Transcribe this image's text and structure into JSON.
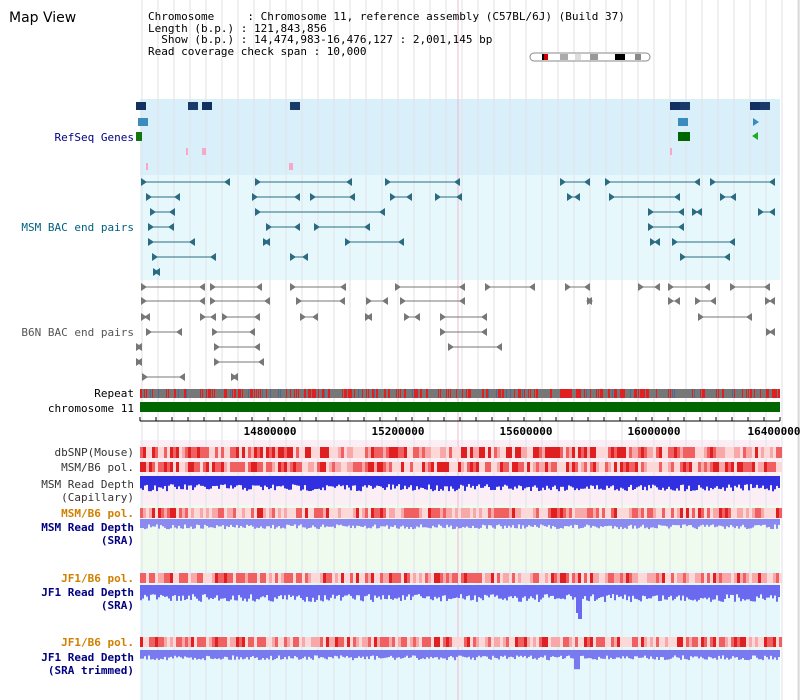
{
  "view_title": "Map View",
  "info": {
    "chromosome": "Chromosome     : Chromosome 11, reference assembly (C57BL/6J) (Build 37)",
    "length": "Length (b.p.) : 121,843,856",
    "show": "  Show (b.p.) : 14,474,983-16,476,127 : 2,001,145 bp",
    "coverage": "Read coverage check span : 10,000"
  },
  "tracks": {
    "refseq": "RefSeq Genes",
    "msm_bac": "MSM BAC end pairs",
    "b6n_bac": "B6N BAC end pairs",
    "repeat": "Repeat",
    "chromosome": "chromosome 11",
    "dbsnp": "dbSNP(Mouse)",
    "msm_b6_pol": "MSM/B6 pol.",
    "msm_depth_cap_1": "MSM Read Depth",
    "msm_depth_cap_2": "(Capillary)",
    "msm_b6_pol2": "MSM/B6 pol.",
    "msm_depth_sra_1": "MSM Read Depth",
    "msm_depth_sra_2": "(SRA)",
    "jf1_pol": "JF1/B6 pol.",
    "jf1_depth_sra_1": "JF1 Read Depth",
    "jf1_depth_sra_2": "(SRA)",
    "jf1_pol2": "JF1/B6 pol.",
    "jf1_depth_trim_1": "JF1 Read Depth",
    "jf1_depth_trim_2": "(SRA trimmed)"
  },
  "axis_ticks": [
    "14800000",
    "15200000",
    "15600000",
    "16000000",
    "16400000"
  ],
  "colors": {
    "refseq_label": "#000080",
    "msm_label": "#006080",
    "b6n_label": "#555555",
    "pol_label": "#d08000",
    "depth_label": "#000080",
    "chromosome_bar": "#006600"
  }
}
